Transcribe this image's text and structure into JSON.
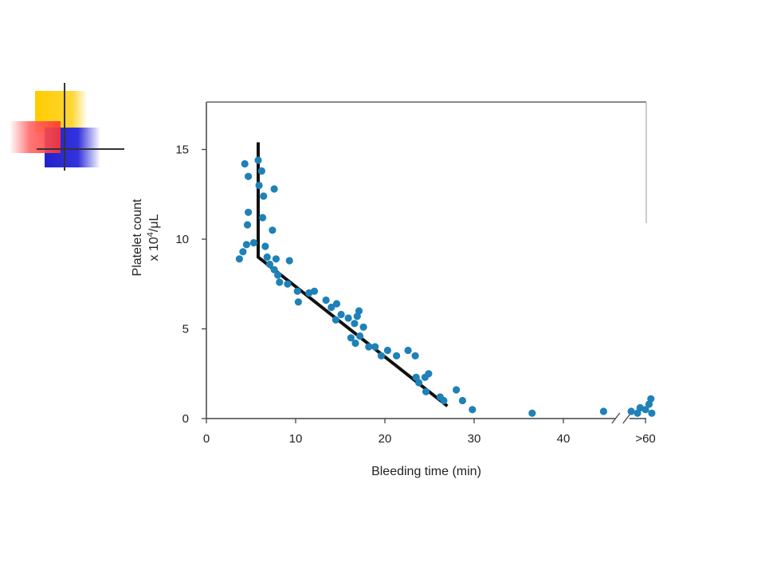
{
  "colors": {
    "point": "#1e81b8",
    "trend": "#111111",
    "axis": "#444444",
    "deco_yellow": "#ffcc00",
    "deco_red": "#ff3333",
    "deco_blue": "#2222cc"
  },
  "chart_data": {
    "type": "scatter",
    "title": "",
    "xlabel": "Bleeding time (min)",
    "ylabel_line1": "Platelet count",
    "ylabel_line2_prefix": "x 10",
    "ylabel_line2_sup": "4",
    "ylabel_line2_suffix": "/μL",
    "xlim": [
      0,
      50
    ],
    "ylim": [
      0,
      17.5
    ],
    "x_ticks": [
      {
        "value": 0,
        "label": "0"
      },
      {
        "value": 10,
        "label": "10"
      },
      {
        "value": 20,
        "label": "20"
      },
      {
        "value": 30,
        "label": "30"
      },
      {
        "value": 40,
        "label": "40"
      },
      {
        "value": 49.2,
        "label": ">60"
      }
    ],
    "y_ticks": [
      {
        "value": 0,
        "label": "0"
      },
      {
        "value": 5,
        "label": "5"
      },
      {
        "value": 10,
        "label": "10"
      },
      {
        "value": 15,
        "label": "15"
      }
    ],
    "axis_break_at": 46.5,
    "grid": false,
    "trend_line": [
      [
        5.8,
        15.4
      ],
      [
        5.8,
        9.0
      ],
      [
        27.0,
        0.7
      ]
    ],
    "points": [
      [
        4.3,
        14.2
      ],
      [
        5.8,
        14.4
      ],
      [
        4.7,
        13.5
      ],
      [
        6.2,
        13.8
      ],
      [
        5.9,
        13.0
      ],
      [
        7.6,
        12.8
      ],
      [
        6.4,
        12.4
      ],
      [
        4.7,
        11.5
      ],
      [
        6.3,
        11.2
      ],
      [
        4.6,
        10.8
      ],
      [
        7.4,
        10.5
      ],
      [
        4.5,
        9.7
      ],
      [
        5.3,
        9.8
      ],
      [
        6.6,
        9.6
      ],
      [
        3.7,
        8.9
      ],
      [
        4.1,
        9.3
      ],
      [
        6.8,
        9.0
      ],
      [
        7.1,
        8.6
      ],
      [
        7.8,
        8.9
      ],
      [
        7.6,
        8.3
      ],
      [
        8.0,
        8.0
      ],
      [
        8.2,
        7.6
      ],
      [
        9.3,
        8.8
      ],
      [
        9.1,
        7.5
      ],
      [
        10.2,
        7.1
      ],
      [
        10.3,
        6.5
      ],
      [
        11.5,
        7.0
      ],
      [
        12.1,
        7.1
      ],
      [
        13.4,
        6.6
      ],
      [
        14.0,
        6.2
      ],
      [
        14.6,
        6.4
      ],
      [
        14.5,
        5.5
      ],
      [
        15.1,
        5.8
      ],
      [
        15.9,
        5.6
      ],
      [
        16.6,
        5.3
      ],
      [
        16.9,
        5.7
      ],
      [
        17.1,
        6.0
      ],
      [
        17.6,
        5.1
      ],
      [
        16.2,
        4.5
      ],
      [
        16.7,
        4.2
      ],
      [
        17.2,
        4.6
      ],
      [
        18.2,
        4.0
      ],
      [
        18.9,
        4.0
      ],
      [
        19.6,
        3.5
      ],
      [
        20.3,
        3.8
      ],
      [
        21.3,
        3.5
      ],
      [
        22.6,
        3.8
      ],
      [
        23.4,
        3.5
      ],
      [
        23.5,
        2.3
      ],
      [
        23.8,
        2.0
      ],
      [
        24.5,
        2.3
      ],
      [
        24.9,
        2.5
      ],
      [
        24.6,
        1.5
      ],
      [
        26.2,
        1.2
      ],
      [
        26.6,
        1.0
      ],
      [
        28.0,
        1.6
      ],
      [
        28.7,
        1.0
      ],
      [
        29.8,
        0.5
      ],
      [
        36.5,
        0.3
      ],
      [
        44.5,
        0.4
      ],
      [
        47.6,
        0.4
      ],
      [
        48.3,
        0.3
      ],
      [
        48.6,
        0.6
      ],
      [
        49.2,
        0.5
      ],
      [
        49.6,
        0.8
      ],
      [
        49.8,
        1.1
      ],
      [
        49.9,
        0.3
      ]
    ]
  }
}
